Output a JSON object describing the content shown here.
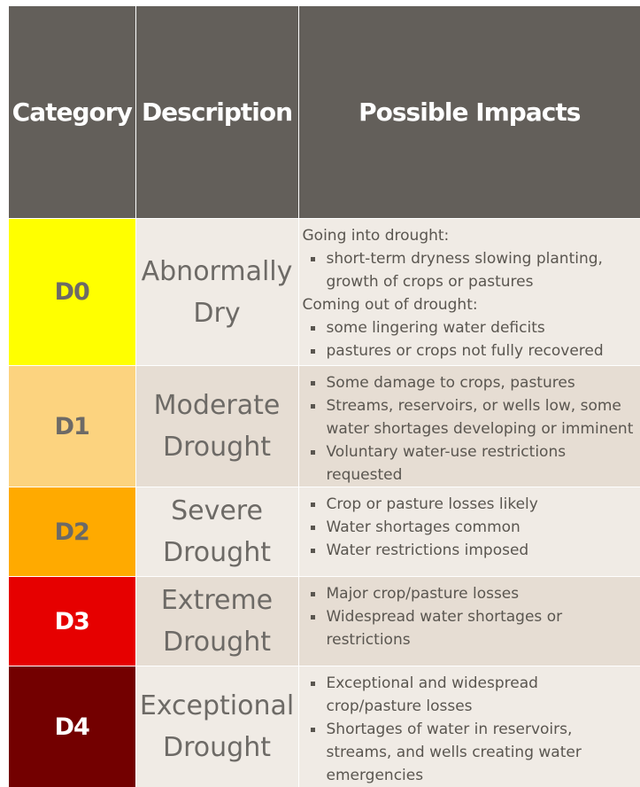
{
  "header": {
    "category": "Category",
    "description": "Description",
    "impacts": "Possible Impacts"
  },
  "colors": {
    "header_bg": "#635f5a",
    "D0": "#ffff00",
    "D1": "#fcd37f",
    "D2": "#ffaa00",
    "D3": "#e60000",
    "D4": "#730000"
  },
  "rows": [
    {
      "category": "D0",
      "description": [
        "Abnormally",
        "Dry"
      ],
      "impacts": {
        "going_into_label": "Going into drought:",
        "going_into": [
          "short-term dryness slowing planting, growth of crops or pastures"
        ],
        "coming_out_label": "Coming out of drought:",
        "coming_out": [
          "some lingering water deficits",
          "pastures or crops not fully recovered"
        ]
      }
    },
    {
      "category": "D1",
      "description": [
        "Moderate",
        "Drought"
      ],
      "impacts": [
        "Some damage to crops, pastures",
        "Streams, reservoirs, or wells low, some water shortages developing or imminent",
        "Voluntary water-use restrictions requested"
      ]
    },
    {
      "category": "D2",
      "description": [
        "Severe",
        "Drought"
      ],
      "impacts": [
        "Crop or pasture losses likely",
        "Water shortages common",
        "Water restrictions imposed"
      ]
    },
    {
      "category": "D3",
      "description": [
        "Extreme",
        "Drought"
      ],
      "impacts": [
        "Major crop/pasture losses",
        "Widespread water shortages or restrictions"
      ]
    },
    {
      "category": "D4",
      "description": [
        "Exceptional",
        "Drought"
      ],
      "impacts": [
        "Exceptional and widespread crop/pasture losses",
        "Shortages of water in reservoirs, streams, and wells creating water emergencies"
      ]
    }
  ]
}
